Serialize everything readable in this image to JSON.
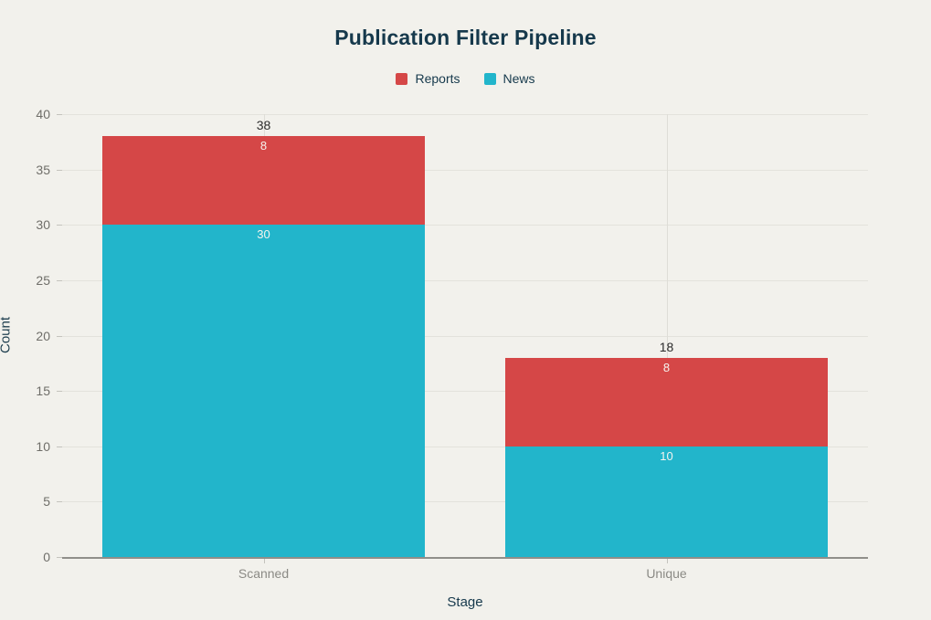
{
  "chart_data": {
    "type": "bar",
    "stacked": true,
    "title": "Publication Filter Pipeline",
    "xlabel": "Stage",
    "ylabel": "Count",
    "categories": [
      "Scanned",
      "Unique"
    ],
    "series": [
      {
        "name": "News",
        "color": "#22b5cb",
        "values": [
          30,
          10
        ]
      },
      {
        "name": "Reports",
        "color": "#d54747",
        "values": [
          8,
          8
        ]
      }
    ],
    "stack_order_bottom_to_top": [
      "News",
      "Reports"
    ],
    "totals": [
      38,
      18
    ],
    "ylim": [
      0,
      40
    ],
    "yticks": [
      0,
      5,
      10,
      15,
      20,
      25,
      30,
      35,
      40
    ],
    "legend": [
      {
        "label": "Reports",
        "color": "#d54747"
      },
      {
        "label": "News",
        "color": "#22b5cb"
      }
    ],
    "legend_position": "top",
    "grid": true,
    "bar_width_fraction": 0.8
  },
  "colors": {
    "background": "#f2f1ec",
    "title_text": "#16394c",
    "tick_text": "#6f6e69",
    "category_text": "#8b8a85",
    "gridline": "#e3e2dc",
    "axis_line": "#908f8a",
    "segment_label_text": "#f5f4ef",
    "total_label_text": "#2b2b2b"
  }
}
